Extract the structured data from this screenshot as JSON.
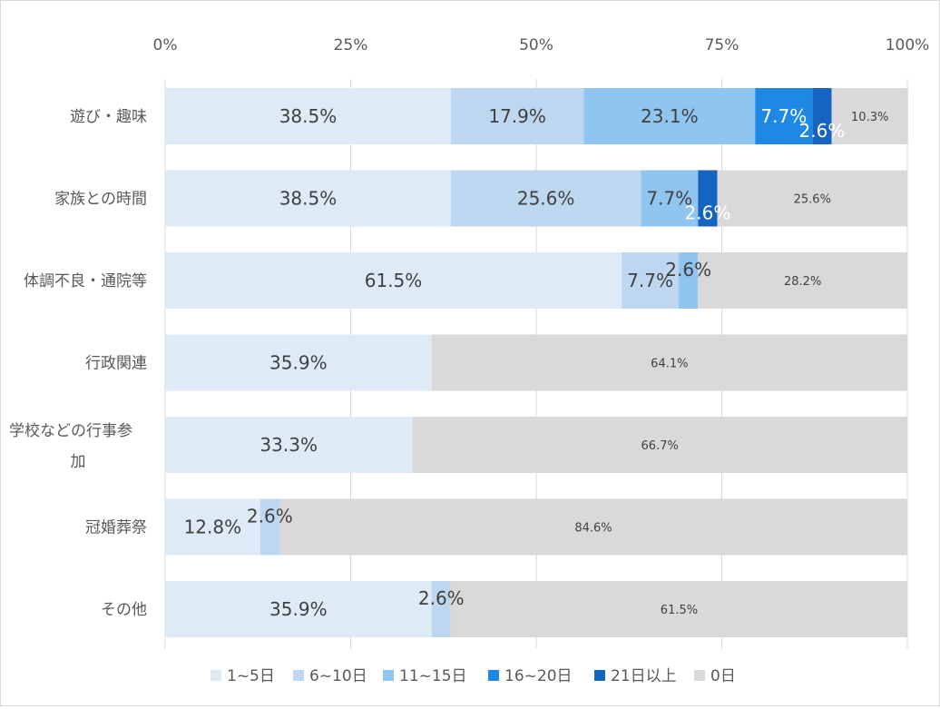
{
  "chart_data": {
    "type": "bar",
    "orientation": "horizontal",
    "stacked": "percent",
    "title": "",
    "xlabel": "",
    "ylabel": "",
    "xlim": [
      0,
      100
    ],
    "x_ticks": [
      "0%",
      "25%",
      "50%",
      "75%",
      "100%"
    ],
    "grid": true,
    "legend_position": "bottom",
    "categories": [
      "遊び・趣味",
      "家族との時間",
      "体調不良・通院等",
      "行政関連",
      "学校などの行事参加",
      "冠婚葬祭",
      "その他"
    ],
    "series": [
      {
        "name": "1~5日",
        "color": "#deebf7",
        "values": [
          38.5,
          38.5,
          61.5,
          35.9,
          33.3,
          12.8,
          35.9
        ],
        "labels": [
          "38.5%",
          "38.5%",
          "61.5%",
          "35.9%",
          "33.3%",
          "12.8%",
          "35.9%"
        ]
      },
      {
        "name": "6~10日",
        "color": "#bdd7f0",
        "values": [
          17.9,
          25.6,
          7.7,
          0,
          0,
          2.6,
          2.6
        ],
        "labels": [
          "17.9%",
          "25.6%",
          "7.7%",
          "",
          "",
          "2.6%",
          "2.6%"
        ]
      },
      {
        "name": "11~15日",
        "color": "#90c5f0",
        "values": [
          23.1,
          7.7,
          2.6,
          0,
          0,
          0,
          0
        ],
        "labels": [
          "23.1%",
          "7.7%",
          "2.6%",
          "",
          "",
          "",
          ""
        ]
      },
      {
        "name": "16~20日",
        "color": "#1e88e5",
        "values": [
          7.7,
          0,
          0,
          0,
          0,
          0,
          0
        ],
        "labels": [
          "7.7%",
          "",
          "",
          "",
          "",
          "",
          ""
        ]
      },
      {
        "name": "21日以上",
        "color": "#1565c0",
        "values": [
          2.6,
          2.6,
          0,
          0,
          0,
          0,
          0
        ],
        "labels": [
          "2.6%",
          "2.6%",
          "",
          "",
          "",
          "",
          ""
        ]
      },
      {
        "name": "0日",
        "color": "#d9d9d9",
        "values": [
          10.3,
          25.6,
          28.2,
          64.1,
          66.7,
          84.6,
          61.5
        ],
        "labels": [
          "10.3%",
          "25.6%",
          "28.2%",
          "64.1%",
          "66.7%",
          "84.6%",
          "61.5%"
        ]
      }
    ]
  }
}
